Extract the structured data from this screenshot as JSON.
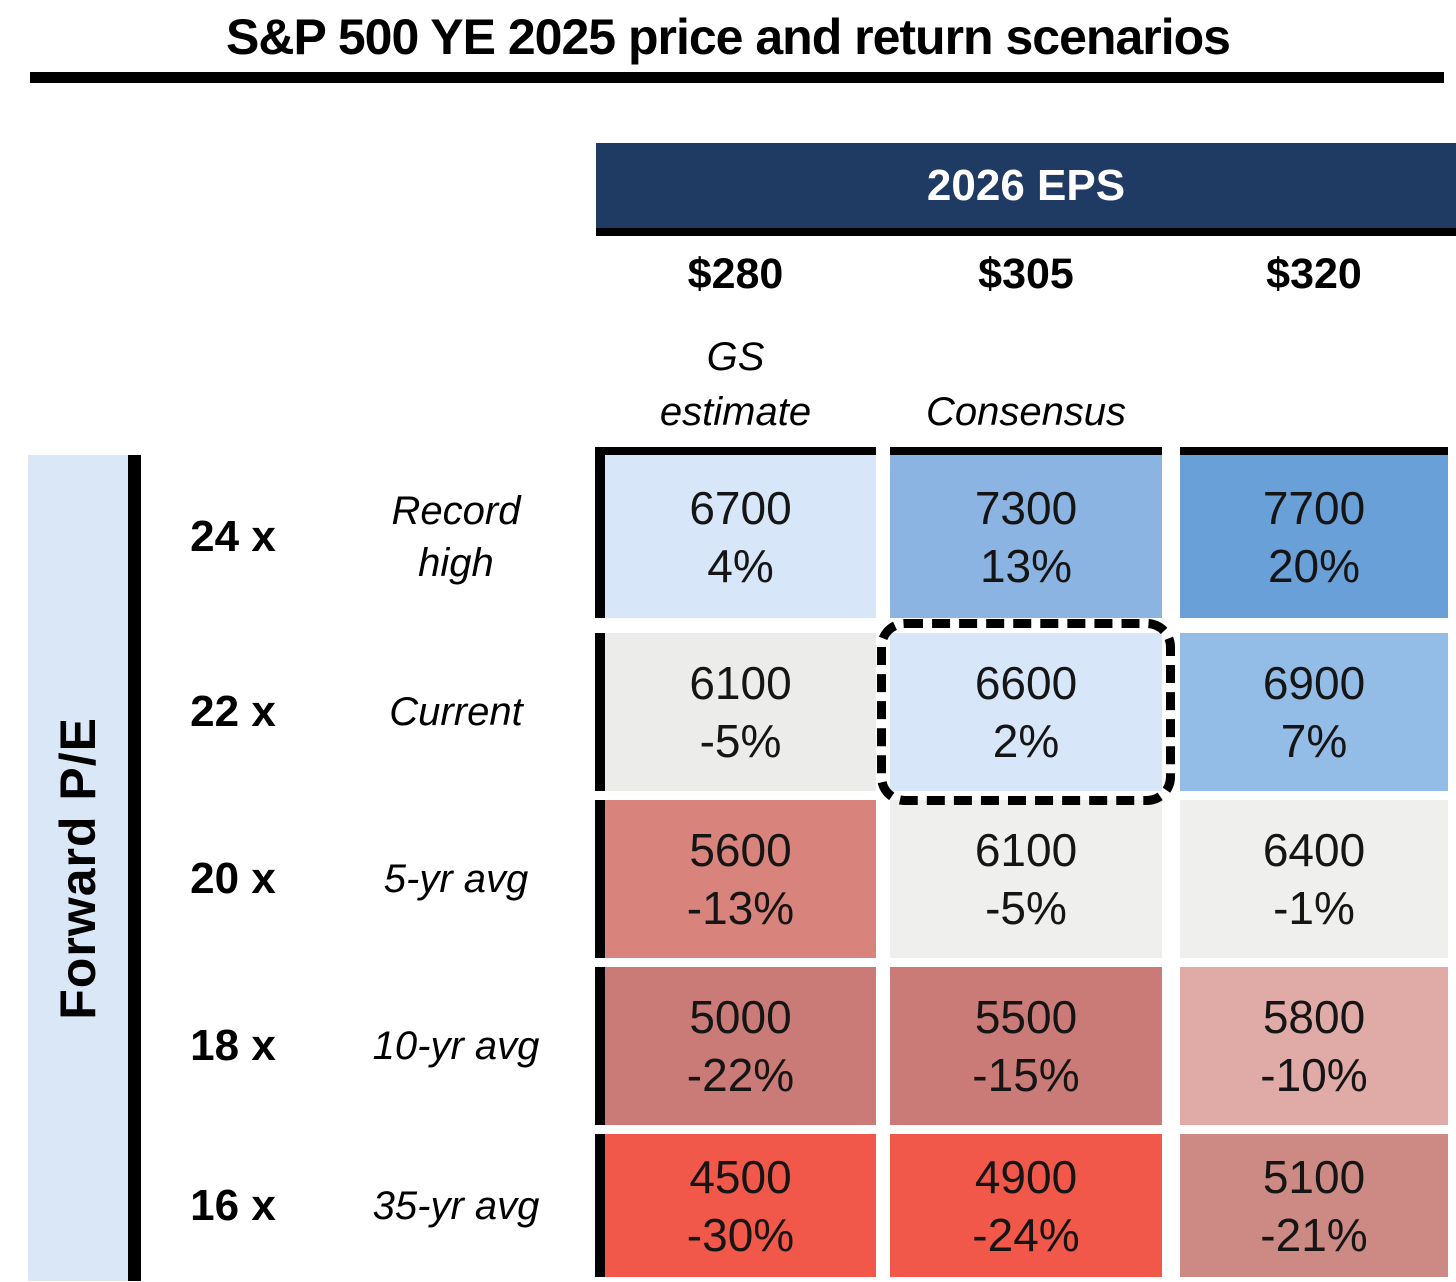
{
  "title": "S&P 500 YE 2025 price and return scenarios",
  "colors": {
    "banner": "#1F3A63",
    "pe_band": "#DAE7F7",
    "positive_strong_blue": "#6AA0D8",
    "negative_strong_red": "#F25849",
    "neutral_gray": "#EFEFED"
  },
  "header": {
    "group_label": "2026 EPS",
    "columns": [
      {
        "eps": "$280",
        "note": "GS\nestimate"
      },
      {
        "eps": "$305",
        "note": "Consensus"
      },
      {
        "eps": "$320",
        "note": ""
      }
    ]
  },
  "row_axis_label": "Forward P/E",
  "matrix": {
    "rows": [
      {
        "pe": "24 x",
        "context": "Record\nhigh",
        "cells": [
          {
            "price": "6700",
            "return": "4%",
            "bg": "#D7E6F8"
          },
          {
            "price": "7300",
            "return": "13%",
            "bg": "#8BB4E2"
          },
          {
            "price": "7700",
            "return": "20%",
            "bg": "#6AA0D8"
          }
        ]
      },
      {
        "pe": "22 x",
        "context": "Current",
        "cells": [
          {
            "price": "6100",
            "return": "-5%",
            "bg": "#ECECEA"
          },
          {
            "price": "6600",
            "return": "2%",
            "bg": "#D7E7F9"
          },
          {
            "price": "6900",
            "return": "7%",
            "bg": "#93BCE7"
          }
        ]
      },
      {
        "pe": "20 x",
        "context": "5-yr avg",
        "cells": [
          {
            "price": "5600",
            "return": "-13%",
            "bg": "#D8837C"
          },
          {
            "price": "6100",
            "return": "-5%",
            "bg": "#EFEFED"
          },
          {
            "price": "6400",
            "return": "-1%",
            "bg": "#EFEFED"
          }
        ]
      },
      {
        "pe": "18 x",
        "context": "10-yr avg",
        "cells": [
          {
            "price": "5000",
            "return": "-22%",
            "bg": "#CB7B77"
          },
          {
            "price": "5500",
            "return": "-15%",
            "bg": "#CB7B77"
          },
          {
            "price": "5800",
            "return": "-10%",
            "bg": "#E0ABA7"
          }
        ]
      },
      {
        "pe": "16 x",
        "context": "35-yr avg",
        "cells": [
          {
            "price": "4500",
            "return": "-30%",
            "bg": "#F25849"
          },
          {
            "price": "4900",
            "return": "-24%",
            "bg": "#F25849"
          },
          {
            "price": "5100",
            "return": "-21%",
            "bg": "#CD8A84"
          }
        ]
      }
    ]
  },
  "chart_data": {
    "type": "heatmap",
    "title": "S&P 500 YE 2025 price and return scenarios",
    "x_group_label": "2026 EPS",
    "x_categories": [
      "$280 (GS estimate)",
      "$305 (Consensus)",
      "$320"
    ],
    "y_axis_label": "Forward P/E",
    "y_categories": [
      "24x (Record high)",
      "22x (Current)",
      "20x (5-yr avg)",
      "18x (10-yr avg)",
      "16x (35-yr avg)"
    ],
    "price_matrix": [
      [
        6700,
        7300,
        7700
      ],
      [
        6100,
        6600,
        6900
      ],
      [
        5600,
        6100,
        6400
      ],
      [
        5000,
        5500,
        5800
      ],
      [
        4500,
        4900,
        5100
      ]
    ],
    "return_matrix_pct": [
      [
        4,
        13,
        20
      ],
      [
        -5,
        2,
        7
      ],
      [
        -13,
        -5,
        -1
      ],
      [
        -22,
        -15,
        -10
      ],
      [
        -30,
        -24,
        -21
      ]
    ],
    "highlighted_cell": {
      "row": "22x Current",
      "column": "$305 Consensus",
      "price": 6600,
      "return_pct": 2
    },
    "legend_position": "none",
    "grid": false
  }
}
